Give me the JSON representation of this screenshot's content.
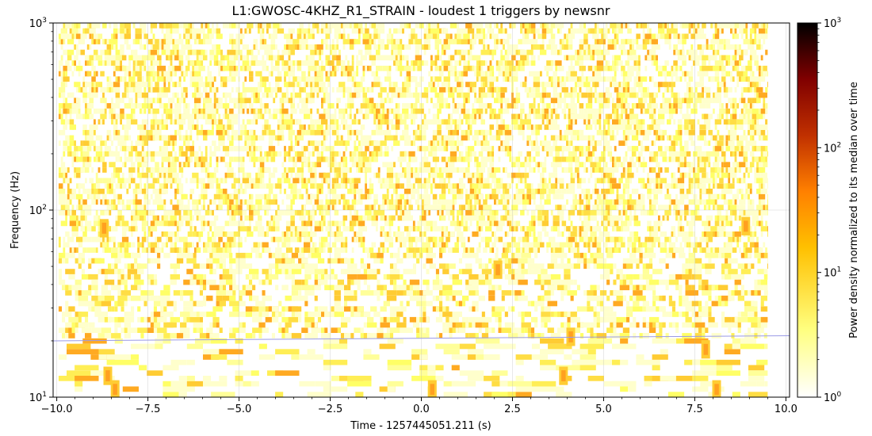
{
  "chart_data": {
    "type": "heatmap",
    "title": "L1:GWOSC-4KHZ_R1_STRAIN - loudest 1 triggers by newsnr",
    "xlabel": "Time - 1257445051.211 (s)",
    "ylabel": "Frequency (Hz)",
    "xlim": [
      -10.1,
      10.1
    ],
    "ylim": [
      10,
      1000
    ],
    "yscale": "log",
    "grid": true,
    "x_ticks": [
      -10.0,
      -7.5,
      -5.0,
      -2.5,
      0.0,
      2.5,
      5.0,
      7.5,
      10.0
    ],
    "x_tick_labels": [
      "−10.0",
      "−7.5",
      "−5.0",
      "−2.5",
      "0.0",
      "2.5",
      "5.0",
      "7.5",
      "10.0"
    ],
    "y_ticks": [
      {
        "value": 10,
        "base": "10",
        "exp": "1"
      },
      {
        "value": 100,
        "base": "10",
        "exp": "2"
      },
      {
        "value": 1000,
        "base": "10",
        "exp": "3"
      }
    ],
    "data_extent": {
      "time": [
        -9.95,
        9.5
      ],
      "frequency": [
        10,
        1000
      ]
    },
    "trigger_track": {
      "time": [
        -10.1,
        10.1
      ],
      "frequency": [
        20.0,
        21.3
      ],
      "color": "#9a9ae6"
    },
    "hot_spots": [
      {
        "t": -8.6,
        "f": 13
      },
      {
        "t": -8.4,
        "f": 11
      },
      {
        "t": 0.3,
        "f": 11
      },
      {
        "t": 3.9,
        "f": 13
      },
      {
        "t": 4.1,
        "f": 21
      },
      {
        "t": 8.1,
        "f": 11
      },
      {
        "t": 7.8,
        "f": 18
      },
      {
        "t": -8.7,
        "f": 80
      },
      {
        "t": 8.9,
        "f": 82
      },
      {
        "t": 2.1,
        "f": 48
      }
    ],
    "colorbar": {
      "label": "Power density normalized to its median over time",
      "scale": "log",
      "range": [
        1,
        1000
      ],
      "ticks": [
        {
          "value": 1,
          "base": "10",
          "exp": "0"
        },
        {
          "value": 10,
          "base": "10",
          "exp": "1"
        },
        {
          "value": 100,
          "base": "10",
          "exp": "2"
        },
        {
          "value": 1000,
          "base": "10",
          "exp": "3"
        }
      ],
      "colormap": [
        "#ffffff",
        "#ffff80",
        "#ffc000",
        "#ff8000",
        "#c03000",
        "#800000",
        "#000000"
      ]
    }
  }
}
